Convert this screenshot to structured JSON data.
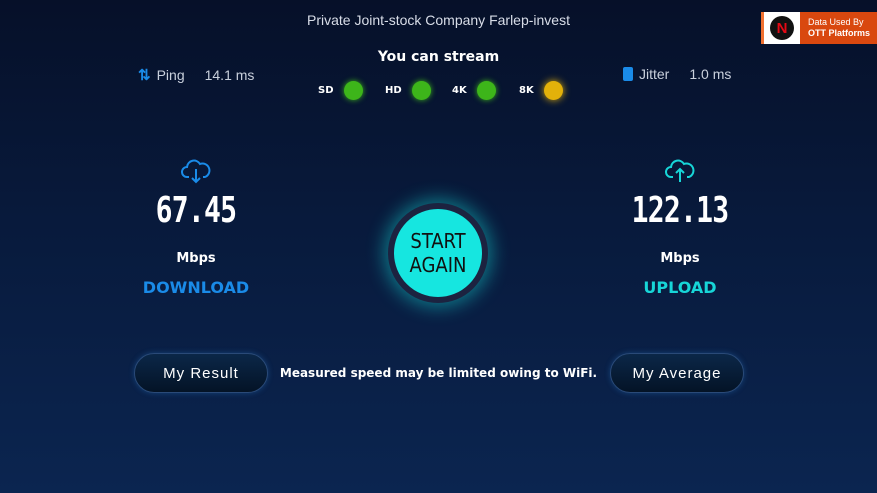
{
  "isp": "Private Joint-stock Company Farlep-invest",
  "badge": {
    "logo_letter": "N",
    "line1": "Data Used By",
    "line2": "OTT Platforms"
  },
  "ping": {
    "icon": "arrows-updown-icon",
    "label": "Ping",
    "value": "14.1 ms"
  },
  "jitter": {
    "icon": "jitter-icon",
    "label": "Jitter",
    "value": "1.0 ms"
  },
  "stream": {
    "title": "You can stream",
    "qualities": [
      {
        "label": "SD",
        "color": "#3db51a"
      },
      {
        "label": "HD",
        "color": "#3db51a"
      },
      {
        "label": "4K",
        "color": "#3db51a"
      },
      {
        "label": "8K",
        "color": "#e3b10a"
      }
    ]
  },
  "download": {
    "value": "67.45",
    "unit": "Mbps",
    "label": "DOWNLOAD",
    "color": "#1a8be8"
  },
  "upload": {
    "value": "122.13",
    "unit": "Mbps",
    "label": "UPLOAD",
    "color": "#17d6d8"
  },
  "start": {
    "line1": "START",
    "line2": "AGAIN"
  },
  "buttons": {
    "result": "My Result",
    "average": "My Average"
  },
  "note": "Measured speed may be limited owing to WiFi."
}
